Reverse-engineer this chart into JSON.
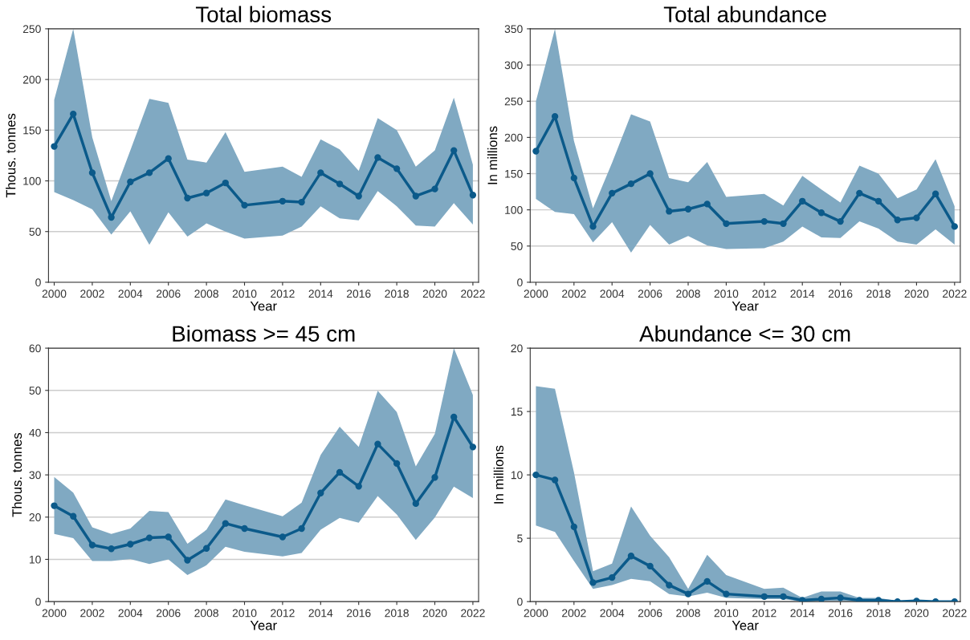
{
  "chart_data": [
    {
      "type": "line",
      "title": "Total biomass",
      "xlabel": "Year",
      "ylabel": "Thous. tonnes",
      "grid": "y",
      "marker": "circle",
      "line_style": "solid",
      "xlim": [
        1999.7,
        2022.3
      ],
      "xticks": [
        2000,
        2002,
        2004,
        2006,
        2008,
        2010,
        2012,
        2014,
        2016,
        2018,
        2020,
        2022
      ],
      "ylim": [
        0,
        250
      ],
      "yticks": [
        0,
        50,
        100,
        150,
        200,
        250
      ],
      "x": [
        2000,
        2001,
        2002,
        2003,
        2004,
        2005,
        2006,
        2007,
        2008,
        2009,
        2010,
        2012,
        2013,
        2014,
        2015,
        2016,
        2017,
        2018,
        2019,
        2020,
        2021,
        2022
      ],
      "series": [
        {
          "color": "#0b5a8a",
          "values": [
            134,
            166,
            108,
            64,
            99,
            108,
            122,
            83,
            88,
            98,
            76,
            80,
            79,
            108,
            97,
            85,
            123,
            112,
            85,
            92,
            130,
            86
          ],
          "upper": [
            180,
            250,
            143,
            80,
            130,
            181,
            177,
            121,
            118,
            148,
            109,
            114,
            104,
            141,
            131,
            110,
            162,
            150,
            114,
            130,
            182,
            116
          ],
          "lower": [
            89,
            81,
            72,
            47,
            70,
            37,
            69,
            45,
            58,
            50,
            43,
            46,
            55,
            75,
            63,
            61,
            90,
            75,
            56,
            55,
            78,
            57
          ]
        }
      ]
    },
    {
      "type": "line",
      "title": "Total abundance",
      "xlabel": "Year",
      "ylabel": "In millions",
      "grid": "y",
      "marker": "circle",
      "line_style": "solid",
      "xlim": [
        1999.7,
        2022.3
      ],
      "xticks": [
        2000,
        2002,
        2004,
        2006,
        2008,
        2010,
        2012,
        2014,
        2016,
        2018,
        2020,
        2022
      ],
      "ylim": [
        0,
        350
      ],
      "yticks": [
        0,
        50,
        100,
        150,
        200,
        250,
        300,
        350
      ],
      "x": [
        2000,
        2001,
        2002,
        2003,
        2004,
        2005,
        2006,
        2007,
        2008,
        2009,
        2010,
        2012,
        2013,
        2014,
        2015,
        2016,
        2017,
        2018,
        2019,
        2020,
        2021,
        2022
      ],
      "series": [
        {
          "color": "#0b5a8a",
          "values": [
            181,
            229,
            144,
            77,
            123,
            136,
            150,
            98,
            101,
            108,
            81,
            84,
            81,
            112,
            96,
            84,
            123,
            112,
            86,
            89,
            122,
            77
          ],
          "upper": [
            250,
            350,
            195,
            102,
            165,
            232,
            222,
            144,
            138,
            166,
            118,
            122,
            106,
            147,
            128,
            110,
            161,
            150,
            116,
            128,
            170,
            105
          ],
          "lower": [
            115,
            97,
            94,
            55,
            83,
            41,
            79,
            52,
            64,
            51,
            46,
            47,
            56,
            77,
            62,
            61,
            84,
            74,
            56,
            52,
            73,
            52
          ]
        }
      ]
    },
    {
      "type": "line",
      "title": "Biomass >= 45 cm",
      "xlabel": "Year",
      "ylabel": "Thous. tonnes",
      "grid": "y",
      "marker": "circle",
      "line_style": "solid",
      "xlim": [
        1999.7,
        2022.3
      ],
      "xticks": [
        2000,
        2002,
        2004,
        2006,
        2008,
        2010,
        2012,
        2014,
        2016,
        2018,
        2020,
        2022
      ],
      "ylim": [
        0,
        60
      ],
      "yticks": [
        0,
        10,
        20,
        30,
        40,
        50,
        60
      ],
      "x": [
        2000,
        2001,
        2002,
        2003,
        2004,
        2005,
        2006,
        2007,
        2008,
        2009,
        2010,
        2012,
        2013,
        2014,
        2015,
        2016,
        2017,
        2018,
        2019,
        2020,
        2021,
        2022
      ],
      "series": [
        {
          "color": "#0b5a8a",
          "values": [
            22.7,
            20.2,
            13.4,
            12.5,
            13.6,
            15.1,
            15.3,
            9.8,
            12.6,
            18.5,
            17.3,
            15.3,
            17.3,
            25.7,
            30.6,
            27.3,
            37.3,
            32.7,
            23.2,
            29.4,
            43.7,
            36.6
          ],
          "upper": [
            29.5,
            25.8,
            17.6,
            16.0,
            17.3,
            21.5,
            21.2,
            13.7,
            17.0,
            24.2,
            22.8,
            20.2,
            23.4,
            34.7,
            41.4,
            36.6,
            49.9,
            44.9,
            32.0,
            39.7,
            60,
            48.9
          ],
          "lower": [
            16.0,
            15.0,
            9.6,
            9.6,
            10.1,
            8.9,
            10.0,
            6.3,
            8.6,
            13.0,
            11.8,
            10.7,
            11.5,
            17.0,
            19.8,
            18.7,
            25.0,
            20.6,
            14.6,
            19.9,
            27.2,
            24.5
          ]
        }
      ]
    },
    {
      "type": "line",
      "title": "Abundance <= 30 cm",
      "xlabel": "Year",
      "ylabel": "In millions",
      "grid": "y",
      "marker": "circle",
      "line_style": "solid",
      "xlim": [
        1999.7,
        2022.3
      ],
      "xticks": [
        2000,
        2002,
        2004,
        2006,
        2008,
        2010,
        2012,
        2014,
        2016,
        2018,
        2020,
        2022
      ],
      "ylim": [
        0,
        20
      ],
      "yticks": [
        0,
        5,
        10,
        15,
        20
      ],
      "x": [
        2000,
        2001,
        2002,
        2003,
        2004,
        2005,
        2006,
        2007,
        2008,
        2009,
        2010,
        2012,
        2013,
        2014,
        2015,
        2016,
        2017,
        2018,
        2019,
        2020,
        2021,
        2022
      ],
      "series": [
        {
          "color": "#0b5a8a",
          "values": [
            10.0,
            9.6,
            5.9,
            1.5,
            1.9,
            3.6,
            2.8,
            1.3,
            0.6,
            1.6,
            0.6,
            0.4,
            0.4,
            0.1,
            0.2,
            0.3,
            0.1,
            0.1,
            0.0,
            0.05,
            0.0,
            0.0
          ],
          "upper": [
            17.0,
            16.8,
            10.2,
            2.4,
            3.0,
            7.5,
            5.2,
            3.5,
            1.0,
            3.7,
            2.1,
            1.0,
            1.1,
            0.3,
            0.8,
            0.8,
            0.3,
            0.3,
            0.05,
            0.1,
            0.02,
            0.02
          ],
          "lower": [
            6.0,
            5.5,
            3.2,
            1.0,
            1.3,
            1.8,
            1.6,
            0.6,
            0.4,
            0.7,
            0.3,
            0.2,
            0.2,
            0.0,
            0.05,
            0.05,
            0.0,
            0.0,
            0.0,
            0.0,
            0.0,
            0.0
          ]
        }
      ]
    }
  ]
}
